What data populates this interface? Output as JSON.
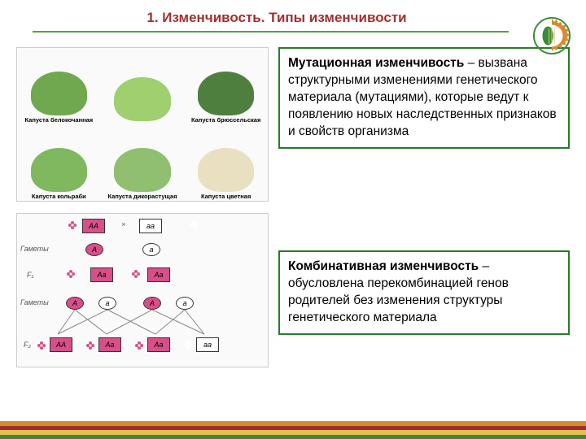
{
  "header": {
    "title": "1. Изменчивость. Типы  изменчивости",
    "title_color": "#a03030",
    "line_color": "#5a9e3e"
  },
  "logo": {
    "gear_color": "#d88a2e",
    "leaf_color": "#3a8a3a",
    "wheat_color": "#e8d088"
  },
  "block1": {
    "term": "Мутационная изменчивость",
    "dash": " – ",
    "body": "вызвана структурными изменениями генетического материала (мутациями), которые ведут к появлению новых наследственных признаков и свойств организма",
    "border_color": "#2a7a2a"
  },
  "block2": {
    "term": "Комбинативная изменчивость",
    "dash": " – ",
    "body": "обусловлена перекомбинацией генов родителей без изменения структуры генетического материала",
    "border_color": "#2a7a2a"
  },
  "cabbages": {
    "items": [
      {
        "label": "Капуста белокочанная",
        "color": "#6fa84f"
      },
      {
        "label": "",
        "color": "#9fcf6f"
      },
      {
        "label": "Капуста брюссельская",
        "color": "#4f7f3f"
      },
      {
        "label": "Капуста кольраби",
        "color": "#7fb85f"
      },
      {
        "label": "Капуста дикорастущая",
        "color": "#8fbf6f"
      },
      {
        "label": "Капуста цветная",
        "color": "#e8e0c0"
      }
    ]
  },
  "punnett": {
    "bg": "#ffffff",
    "pink": "#d94f8a",
    "white": "#ffffff",
    "labels": {
      "gametes": "Гаметы",
      "f1": "F₁",
      "f2": "F₂"
    },
    "genotypes": {
      "AA": "AA",
      "aa": "aa",
      "Aa": "Aa",
      "A": "A",
      "a": "a"
    }
  },
  "footer_colors": [
    "#d88a2e",
    "#a03030",
    "#e0c050",
    "#3a8a3a"
  ]
}
